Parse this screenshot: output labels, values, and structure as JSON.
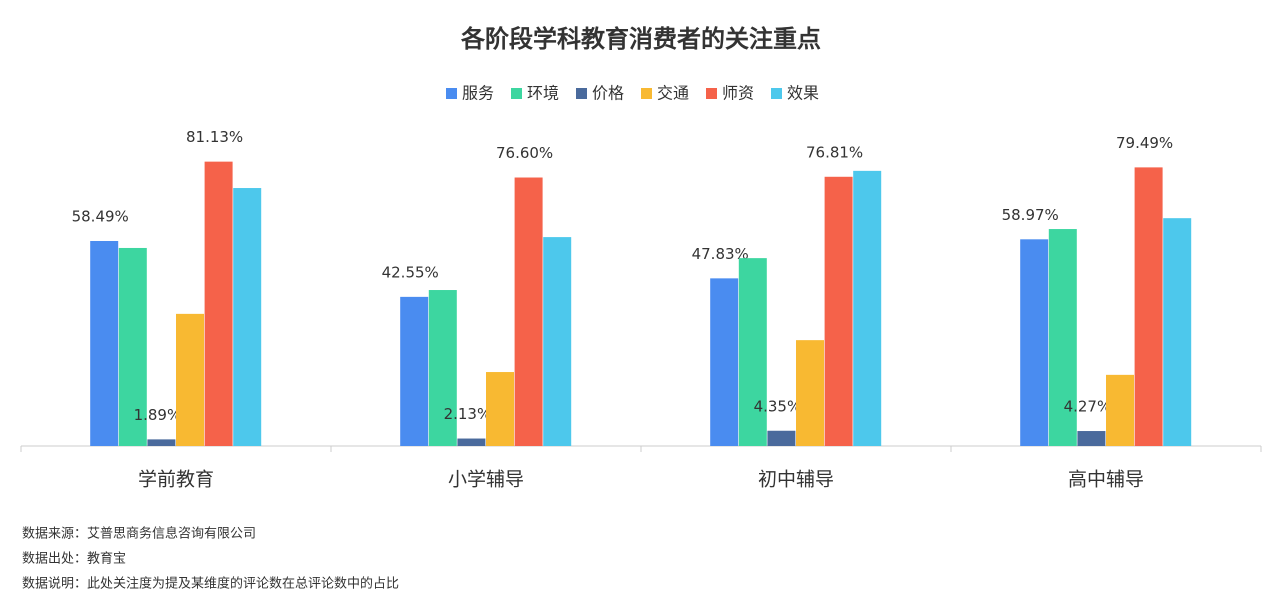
{
  "chart_data": {
    "type": "bar",
    "title": "各阶段学科教育消费者的关注重点",
    "categories": [
      "学前教育",
      "小学辅导",
      "初中辅导",
      "高中辅导"
    ],
    "series": [
      {
        "name": "服务",
        "color": "#4a8cf0",
        "values": [
          58.49,
          42.55,
          47.83,
          58.97
        ],
        "value_labels": [
          "58.49%",
          "42.55%",
          "47.83%",
          "58.97%"
        ]
      },
      {
        "name": "环境",
        "color": "#3dd6a0",
        "values": [
          56.5,
          44.5,
          53.6,
          61.9
        ]
      },
      {
        "name": "价格",
        "color": "#4a6a9c",
        "values": [
          1.89,
          2.13,
          4.35,
          4.27
        ],
        "value_labels": [
          "1.89%",
          "2.13%",
          "4.35%",
          "4.27%"
        ]
      },
      {
        "name": "交通",
        "color": "#f8b932",
        "values": [
          37.7,
          21.1,
          30.2,
          20.3
        ]
      },
      {
        "name": "师资",
        "color": "#f5624a",
        "values": [
          81.13,
          76.6,
          76.81,
          79.49
        ],
        "value_labels": [
          "81.13%",
          "76.60%",
          "76.81%",
          "79.49%"
        ]
      },
      {
        "name": "效果",
        "color": "#4dc8ec",
        "values": [
          73.6,
          59.6,
          78.5,
          65.0
        ]
      }
    ],
    "ylim": [
      0,
      100
    ],
    "legend": "top",
    "notes": [
      "数据来源：艾普思商务信息咨询有限公司",
      "数据出处：教育宝",
      "数据说明：此处关注度为提及某维度的评论数在总评论数中的占比"
    ]
  }
}
